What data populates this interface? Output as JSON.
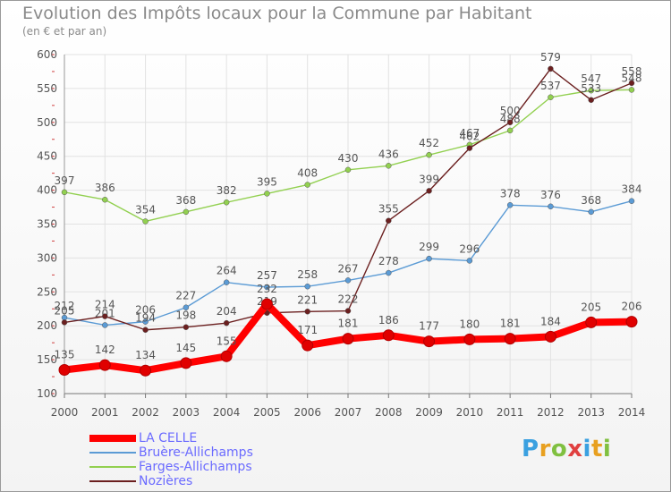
{
  "title": "Evolution des Impôts locaux pour la Commune par Habitant",
  "subtitle": "(en € et par an)",
  "logo": {
    "letters": [
      "P",
      "r",
      "o",
      "x",
      "i",
      "t",
      "i"
    ],
    "colors": [
      "#3aa0e0",
      "#e8a020",
      "#80c040",
      "#e04040",
      "#3aa0e0",
      "#e8a020",
      "#80c040"
    ]
  },
  "chart_data": {
    "type": "line",
    "x": [
      2000,
      2001,
      2002,
      2003,
      2004,
      2005,
      2006,
      2007,
      2008,
      2009,
      2010,
      2011,
      2012,
      2013,
      2014
    ],
    "yticks": [
      100,
      150,
      200,
      250,
      300,
      350,
      400,
      450,
      500,
      550,
      600
    ],
    "ylim": [
      100,
      600
    ],
    "grid": true,
    "legend_position": "bottom-left",
    "series": [
      {
        "name": "LA CELLE",
        "color": "#ff0000",
        "values": [
          135,
          142,
          134,
          145,
          155,
          232,
          171,
          181,
          186,
          177,
          180,
          181,
          184,
          205,
          206
        ]
      },
      {
        "name": "Bruère-Allichamps",
        "color": "#5b9bd5",
        "values": [
          212,
          201,
          206,
          227,
          264,
          257,
          258,
          267,
          278,
          299,
          296,
          378,
          376,
          368,
          384
        ]
      },
      {
        "name": "Farges-Allichamps",
        "color": "#92d050",
        "values": [
          397,
          386,
          354,
          368,
          382,
          395,
          408,
          430,
          436,
          452,
          467,
          488,
          537,
          547,
          548
        ]
      },
      {
        "name": "Nozières",
        "color": "#6b1f1f",
        "values": [
          205,
          214,
          194,
          198,
          204,
          219,
          221,
          222,
          355,
          399,
          462,
          500,
          579,
          533,
          558
        ]
      }
    ]
  }
}
